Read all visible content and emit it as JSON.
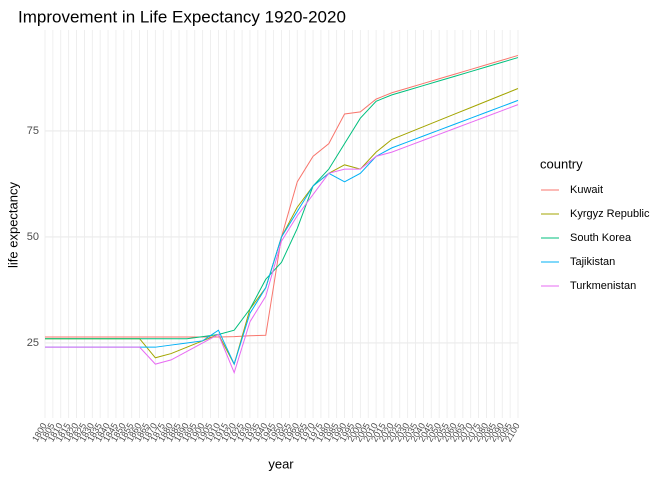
{
  "chart_data": {
    "type": "line",
    "title": "Improvement in Life Expectancy 1920-2020",
    "x_label": "year",
    "y_label": "life expectancy",
    "legend_title": "country",
    "legend": "right",
    "grid": true,
    "xlim": [
      1800,
      2100
    ],
    "ylim": [
      7.3,
      98.8
    ],
    "yticks": [
      25,
      50,
      75
    ],
    "xticks": [
      1800,
      1805,
      1810,
      1815,
      1820,
      1825,
      1830,
      1835,
      1840,
      1845,
      1850,
      1855,
      1860,
      1865,
      1870,
      1875,
      1880,
      1885,
      1890,
      1895,
      1900,
      1905,
      1910,
      1915,
      1920,
      1925,
      1930,
      1935,
      1940,
      1945,
      1950,
      1955,
      1960,
      1965,
      1970,
      1975,
      1980,
      1985,
      1990,
      1995,
      2000,
      2005,
      2010,
      2015,
      2020,
      2025,
      2030,
      2035,
      2040,
      2045,
      2050,
      2055,
      2060,
      2065,
      2070,
      2075,
      2080,
      2085,
      2090,
      2095,
      2100
    ],
    "x": [
      1800,
      1810,
      1820,
      1830,
      1840,
      1850,
      1860,
      1870,
      1880,
      1890,
      1900,
      1910,
      1920,
      1930,
      1940,
      1950,
      1960,
      1970,
      1980,
      1990,
      2000,
      2010,
      2020,
      2030,
      2040,
      2050,
      2060,
      2070,
      2080,
      2090,
      2100
    ],
    "series": [
      {
        "name": "Kuwait",
        "color": "#F8766D",
        "values": [
          26.4,
          26.4,
          26.4,
          26.4,
          26.4,
          26.4,
          26.4,
          26.4,
          26.4,
          26.4,
          26.4,
          26.4,
          26.5,
          26.7,
          26.8,
          50,
          63,
          69,
          72,
          79,
          79.5,
          82.5,
          84,
          85.1,
          86.2,
          87.3,
          88.4,
          89.5,
          90.6,
          91.7,
          92.8
        ]
      },
      {
        "name": "Kyrgyz Republic",
        "color": "#A3A500",
        "values": [
          26,
          26,
          26,
          26,
          26,
          26,
          26,
          21.5,
          22.5,
          24,
          25.5,
          27,
          20,
          33,
          38,
          50,
          57,
          62,
          65,
          67,
          66,
          70,
          73,
          74.5,
          76,
          77.5,
          79,
          80.5,
          82,
          83.5,
          85
        ]
      },
      {
        "name": "South Korea",
        "color": "#00BF7D",
        "values": [
          26,
          26,
          26,
          26,
          26,
          26,
          26,
          26,
          26,
          26,
          26.5,
          27,
          28,
          33,
          40,
          44,
          52,
          62,
          66,
          72,
          78,
          82,
          83.5,
          84.6,
          85.7,
          86.8,
          87.9,
          89,
          90.1,
          91.2,
          92.3
        ]
      },
      {
        "name": "Tajikistan",
        "color": "#00B0F6",
        "values": [
          24,
          24,
          24,
          24,
          24,
          24,
          24,
          24,
          24.5,
          25,
          25.5,
          28,
          20,
          32,
          38,
          50,
          56,
          62,
          65,
          63,
          65,
          69,
          71,
          72.4,
          73.8,
          75.2,
          76.6,
          78,
          79.4,
          80.8,
          82.2
        ]
      },
      {
        "name": "Turkmenistan",
        "color": "#E76BF3",
        "values": [
          24,
          24,
          24,
          24,
          24,
          24,
          24,
          20,
          21,
          23,
          25,
          27,
          18,
          30,
          36,
          49,
          55,
          60,
          65,
          66,
          66,
          69,
          70,
          71.4,
          72.8,
          74.2,
          75.6,
          77,
          78.4,
          79.8,
          81.2
        ]
      }
    ]
  }
}
